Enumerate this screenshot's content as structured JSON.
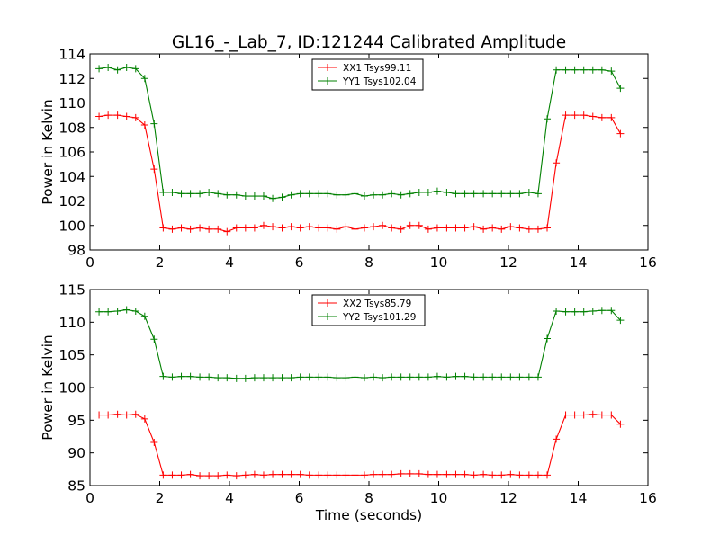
{
  "title": "GL16_-_Lab_7, ID:121244 Calibrated Amplitude",
  "colors": {
    "series_1": "#ff0000",
    "series_2": "#008000",
    "axes": "#000000",
    "background": "#ffffff"
  },
  "chart_data": [
    {
      "type": "line",
      "xlabel": "",
      "ylabel": "Power in Kelvin",
      "xlim": [
        0,
        16
      ],
      "ylim": [
        98,
        114
      ],
      "x_ticks": [
        0,
        2,
        4,
        6,
        8,
        10,
        12,
        14,
        16
      ],
      "y_ticks": [
        98,
        100,
        102,
        104,
        106,
        108,
        110,
        112,
        114
      ],
      "grid": false,
      "legend_position": "top-center",
      "marker": "+",
      "x": [
        0.26,
        0.52,
        0.79,
        1.05,
        1.31,
        1.57,
        1.84,
        2.1,
        2.36,
        2.62,
        2.88,
        3.15,
        3.41,
        3.67,
        3.93,
        4.2,
        4.46,
        4.72,
        4.98,
        5.24,
        5.51,
        5.77,
        6.03,
        6.29,
        6.56,
        6.82,
        7.08,
        7.34,
        7.6,
        7.87,
        8.13,
        8.39,
        8.65,
        8.92,
        9.18,
        9.44,
        9.7,
        9.96,
        10.23,
        10.49,
        10.75,
        11.01,
        11.28,
        11.54,
        11.8,
        12.06,
        12.32,
        12.59,
        12.85,
        13.11,
        13.37,
        13.64,
        13.9,
        14.16,
        14.42,
        14.68,
        14.95,
        15.21
      ],
      "series": [
        {
          "name": "XX1 Tsys99.11",
          "color": "#ff0000",
          "values": [
            108.9,
            109.0,
            109.0,
            108.9,
            108.8,
            108.2,
            104.6,
            99.8,
            99.7,
            99.8,
            99.7,
            99.8,
            99.7,
            99.7,
            99.5,
            99.8,
            99.8,
            99.8,
            100.0,
            99.9,
            99.8,
            99.9,
            99.8,
            99.9,
            99.8,
            99.8,
            99.7,
            99.9,
            99.7,
            99.8,
            99.9,
            100.0,
            99.8,
            99.7,
            100.0,
            100.0,
            99.7,
            99.8,
            99.8,
            99.8,
            99.8,
            99.9,
            99.7,
            99.8,
            99.7,
            99.9,
            99.8,
            99.7,
            99.7,
            99.8,
            105.1,
            109.0,
            109.0,
            109.0,
            108.9,
            108.8,
            108.8,
            107.5
          ]
        },
        {
          "name": "YY1 Tsys102.04",
          "color": "#008000",
          "values": [
            112.8,
            112.9,
            112.7,
            112.9,
            112.8,
            112.0,
            108.3,
            102.7,
            102.7,
            102.6,
            102.6,
            102.6,
            102.7,
            102.6,
            102.5,
            102.5,
            102.4,
            102.4,
            102.4,
            102.2,
            102.3,
            102.5,
            102.6,
            102.6,
            102.6,
            102.6,
            102.5,
            102.5,
            102.6,
            102.4,
            102.5,
            102.5,
            102.6,
            102.5,
            102.6,
            102.7,
            102.7,
            102.8,
            102.7,
            102.6,
            102.6,
            102.6,
            102.6,
            102.6,
            102.6,
            102.6,
            102.6,
            102.7,
            102.6,
            108.7,
            112.7,
            112.7,
            112.7,
            112.7,
            112.7,
            112.7,
            112.6,
            111.2
          ]
        }
      ]
    },
    {
      "type": "line",
      "xlabel": "Time (seconds)",
      "ylabel": "Power in Kelvin",
      "xlim": [
        0,
        16
      ],
      "ylim": [
        85,
        115
      ],
      "x_ticks": [
        0,
        2,
        4,
        6,
        8,
        10,
        12,
        14,
        16
      ],
      "y_ticks": [
        85,
        90,
        95,
        100,
        105,
        110,
        115
      ],
      "grid": false,
      "legend_position": "top-center",
      "marker": "+",
      "x": [
        0.26,
        0.52,
        0.79,
        1.05,
        1.31,
        1.57,
        1.84,
        2.1,
        2.36,
        2.62,
        2.88,
        3.15,
        3.41,
        3.67,
        3.93,
        4.2,
        4.46,
        4.72,
        4.98,
        5.24,
        5.51,
        5.77,
        6.03,
        6.29,
        6.56,
        6.82,
        7.08,
        7.34,
        7.6,
        7.87,
        8.13,
        8.39,
        8.65,
        8.92,
        9.18,
        9.44,
        9.7,
        9.96,
        10.23,
        10.49,
        10.75,
        11.01,
        11.28,
        11.54,
        11.8,
        12.06,
        12.32,
        12.59,
        12.85,
        13.11,
        13.37,
        13.64,
        13.9,
        14.16,
        14.42,
        14.68,
        14.95,
        15.21
      ],
      "series": [
        {
          "name": "XX2 Tsys85.79",
          "color": "#ff0000",
          "values": [
            95.8,
            95.8,
            95.9,
            95.8,
            95.9,
            95.2,
            91.6,
            86.6,
            86.6,
            86.6,
            86.7,
            86.5,
            86.5,
            86.5,
            86.6,
            86.5,
            86.6,
            86.7,
            86.6,
            86.7,
            86.7,
            86.7,
            86.7,
            86.6,
            86.6,
            86.6,
            86.6,
            86.6,
            86.6,
            86.6,
            86.7,
            86.7,
            86.7,
            86.8,
            86.8,
            86.8,
            86.7,
            86.7,
            86.7,
            86.7,
            86.7,
            86.6,
            86.7,
            86.6,
            86.6,
            86.7,
            86.6,
            86.6,
            86.6,
            86.6,
            92.1,
            95.8,
            95.8,
            95.8,
            95.9,
            95.8,
            95.8,
            94.4
          ]
        },
        {
          "name": "YY2 Tsys101.29",
          "color": "#008000",
          "values": [
            111.6,
            111.6,
            111.7,
            111.9,
            111.7,
            110.9,
            107.4,
            101.7,
            101.6,
            101.7,
            101.7,
            101.6,
            101.6,
            101.5,
            101.5,
            101.4,
            101.4,
            101.5,
            101.5,
            101.5,
            101.5,
            101.5,
            101.6,
            101.6,
            101.6,
            101.6,
            101.5,
            101.5,
            101.6,
            101.5,
            101.6,
            101.5,
            101.6,
            101.6,
            101.6,
            101.6,
            101.6,
            101.7,
            101.6,
            101.7,
            101.7,
            101.6,
            101.6,
            101.6,
            101.6,
            101.6,
            101.6,
            101.6,
            101.6,
            107.5,
            111.7,
            111.6,
            111.6,
            111.6,
            111.7,
            111.8,
            111.8,
            110.3
          ]
        }
      ]
    }
  ]
}
